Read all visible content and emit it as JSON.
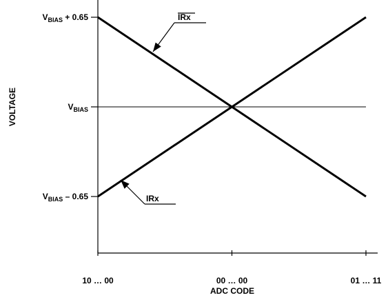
{
  "chart_data": {
    "type": "line",
    "xlabel": "ADC CODE",
    "ylabel": "VOLTAGE",
    "x_ticks": [
      "10 … 00",
      "00 … 00",
      "01 … 11"
    ],
    "y_ticks": [
      {
        "main": "V",
        "sub": "BIAS",
        "suffix": " + 0.65",
        "value": 0.65
      },
      {
        "main": "V",
        "sub": "BIAS",
        "suffix": "",
        "value": 0
      },
      {
        "main": "V",
        "sub": "BIAS",
        "suffix": " – 0.65",
        "value": -0.65
      }
    ],
    "x_values": [
      0,
      1,
      2
    ],
    "ylim": [
      -1.06,
      0.9
    ],
    "reference_line": 0,
    "series": [
      {
        "name": "IRx",
        "overline": true,
        "values": [
          0.65,
          0,
          -0.65
        ]
      },
      {
        "name": "IRx",
        "overline": false,
        "values": [
          -0.65,
          0,
          0.65
        ]
      }
    ]
  }
}
